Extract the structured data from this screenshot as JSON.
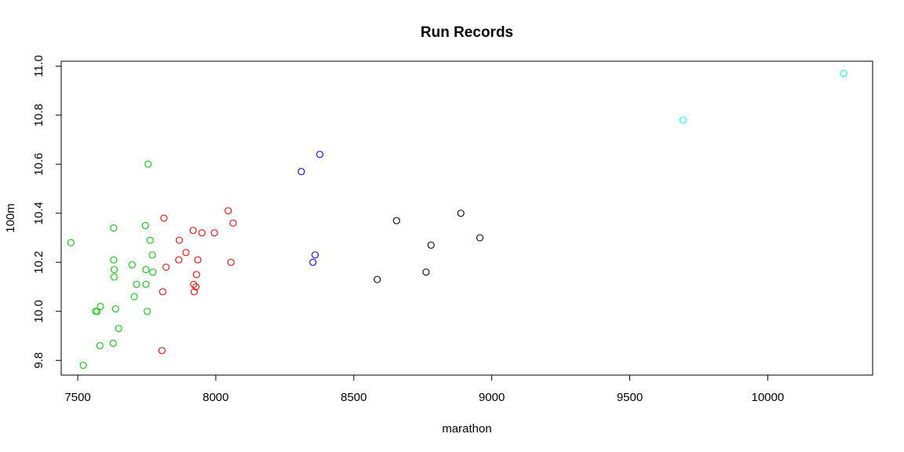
{
  "chart_data": {
    "type": "scatter",
    "title": "Run Records",
    "xlabel": "marathon",
    "ylabel": "100m",
    "xlim": [
      7440,
      10380
    ],
    "ylim": [
      9.74,
      11.02
    ],
    "x_ticks": [
      7500,
      8000,
      8500,
      9000,
      9500,
      10000
    ],
    "y_ticks": [
      9.8,
      10.0,
      10.2,
      10.4,
      10.6,
      10.8,
      11.0
    ],
    "grid": false,
    "legend": "none",
    "series": [
      {
        "color": "#00CD00",
        "points": [
          [
            7475,
            10.28
          ],
          [
            7520,
            9.78
          ],
          [
            7565,
            10.0
          ],
          [
            7570,
            10.0
          ],
          [
            7580,
            9.86
          ],
          [
            7582,
            10.02
          ],
          [
            7628,
            9.87
          ],
          [
            7630,
            10.34
          ],
          [
            7630,
            10.21
          ],
          [
            7632,
            10.17
          ],
          [
            7632,
            10.14
          ],
          [
            7637,
            10.01
          ],
          [
            7648,
            9.93
          ],
          [
            7697,
            10.19
          ],
          [
            7705,
            10.06
          ],
          [
            7713,
            10.11
          ],
          [
            7745,
            10.35
          ],
          [
            7747,
            10.17
          ],
          [
            7747,
            10.11
          ],
          [
            7752,
            10.0
          ],
          [
            7755,
            10.6
          ],
          [
            7762,
            10.29
          ],
          [
            7770,
            10.23
          ],
          [
            7772,
            10.16
          ]
        ]
      },
      {
        "color": "#FF0000",
        "points": [
          [
            7805,
            9.84
          ],
          [
            7808,
            10.08
          ],
          [
            7812,
            10.38
          ],
          [
            7820,
            10.18
          ],
          [
            7866,
            10.21
          ],
          [
            7868,
            10.29
          ],
          [
            7892,
            10.24
          ],
          [
            7918,
            10.33
          ],
          [
            7920,
            10.11
          ],
          [
            7922,
            10.08
          ],
          [
            7928,
            10.1
          ],
          [
            7930,
            10.15
          ],
          [
            7935,
            10.21
          ],
          [
            7950,
            10.32
          ],
          [
            7995,
            10.32
          ],
          [
            8045,
            10.41
          ],
          [
            8055,
            10.2
          ],
          [
            8063,
            10.36
          ]
        ]
      },
      {
        "color": "#0000FF",
        "points": [
          [
            8310,
            10.57
          ],
          [
            8352,
            10.2
          ],
          [
            8360,
            10.23
          ],
          [
            8377,
            10.64
          ]
        ]
      },
      {
        "color": "#000000",
        "points": [
          [
            8585,
            10.13
          ],
          [
            8655,
            10.37
          ],
          [
            8762,
            10.16
          ],
          [
            8780,
            10.27
          ],
          [
            8888,
            10.4
          ],
          [
            8957,
            10.3
          ]
        ]
      },
      {
        "color": "#00FFFF",
        "points": [
          [
            9693,
            10.78
          ],
          [
            10275,
            10.97
          ]
        ]
      }
    ]
  }
}
